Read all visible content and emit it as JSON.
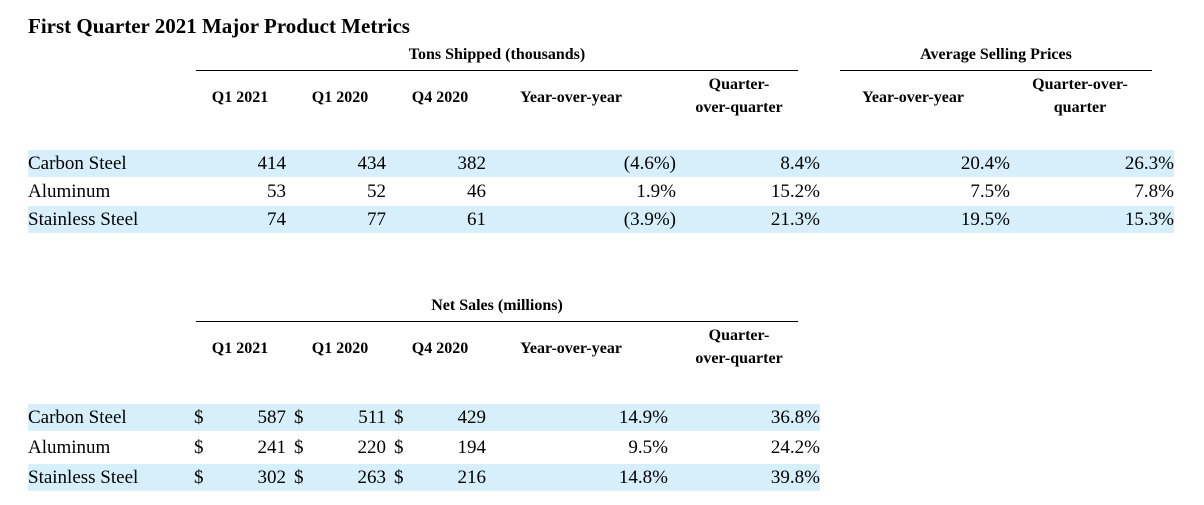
{
  "title": "First Quarter 2021 Major Product Metrics",
  "tons": {
    "group_label": "Tons Shipped (thousands)",
    "asp_label": "Average Selling Prices",
    "headers": [
      "Q1 2021",
      "Q1 2020",
      "Q4 2020",
      "Year-over-year",
      "Quarter-\nover-quarter",
      "Year-over-year",
      "Quarter-over-\nquarter"
    ],
    "rows": [
      {
        "label": "Carbon Steel",
        "q1_2021": "414",
        "q1_2020": "434",
        "q4_2020": "382",
        "yoy": "(4.6%)",
        "qoq": "8.4%",
        "asp_yoy": "20.4%",
        "asp_qoq": "26.3%",
        "shaded": true
      },
      {
        "label": "Aluminum",
        "q1_2021": "53",
        "q1_2020": "52",
        "q4_2020": "46",
        "yoy": "1.9%",
        "qoq": "15.2%",
        "asp_yoy": "7.5%",
        "asp_qoq": "7.8%",
        "shaded": false
      },
      {
        "label": "Stainless Steel",
        "q1_2021": "74",
        "q1_2020": "77",
        "q4_2020": "61",
        "yoy": "(3.9%)",
        "qoq": "21.3%",
        "asp_yoy": "19.5%",
        "asp_qoq": "15.3%",
        "shaded": true
      }
    ]
  },
  "sales": {
    "group_label": "Net Sales (millions)",
    "headers": [
      "Q1 2021",
      "Q1 2020",
      "Q4 2020",
      "Year-over-year",
      "Quarter-\nover-quarter"
    ],
    "currency": "$",
    "rows": [
      {
        "label": "Carbon Steel",
        "q1_2021": "587",
        "q1_2020": "511",
        "q4_2020": "429",
        "yoy": "14.9%",
        "qoq": "36.8%",
        "shaded": true
      },
      {
        "label": "Aluminum",
        "q1_2021": "241",
        "q1_2020": "220",
        "q4_2020": "194",
        "yoy": "9.5%",
        "qoq": "24.2%",
        "shaded": false
      },
      {
        "label": "Stainless Steel",
        "q1_2021": "302",
        "q1_2020": "263",
        "q4_2020": "216",
        "yoy": "14.8%",
        "qoq": "39.8%",
        "shaded": true
      }
    ]
  },
  "colors": {
    "band": "#d6effa"
  }
}
